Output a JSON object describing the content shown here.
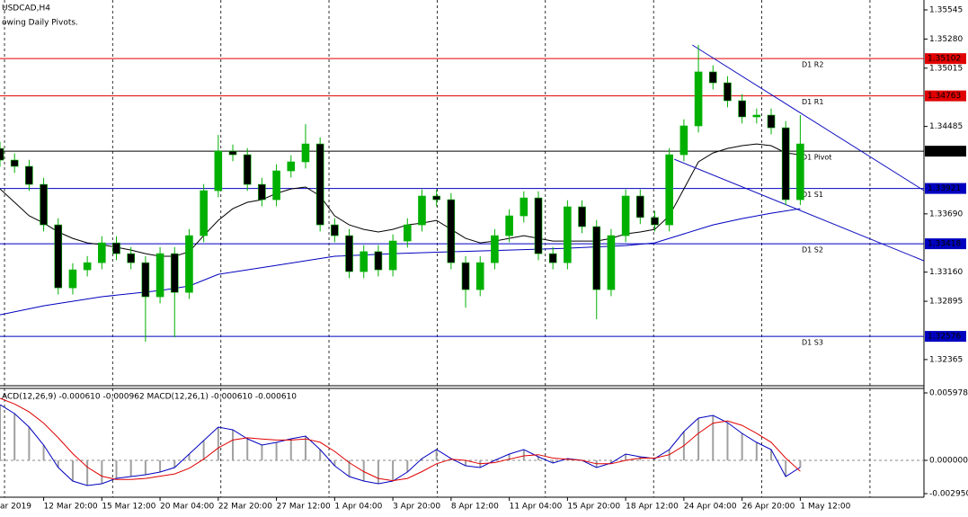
{
  "chart_data": [
    {
      "type": "candlestick",
      "title": "USDCAD,H4",
      "subtitle": "owing Daily Pivots.",
      "xlim": [
        1,
        64.5
      ],
      "ylim": [
        1.32135,
        1.35635
      ],
      "grid_x": [
        1.31,
        8.74,
        16.18,
        23.61,
        31.05,
        38.48,
        45.92,
        53.35,
        60.79
      ],
      "yticks": [
        1.35545,
        {
          "value": 1.3528,
          "label": "1.35280"
        },
        1.35015,
        1.34485,
        {
          "value": 1.3369,
          "label": "1.33690"
        },
        {
          "value": 1.3316,
          "label": "1.33160"
        },
        1.32895,
        1.32365
      ],
      "up_color": "#00b000",
      "down_color": "#000000",
      "wick_color": "#00b000",
      "x": [
        1,
        2,
        3,
        4,
        5,
        6,
        7,
        8,
        9,
        10,
        11,
        12,
        13,
        14,
        15,
        16,
        17,
        18,
        19,
        20,
        21,
        22,
        23,
        24,
        25,
        26,
        27,
        28,
        29,
        30,
        31,
        32,
        33,
        34,
        35,
        36,
        37,
        38,
        39,
        40,
        41,
        42,
        43,
        44,
        45,
        46,
        47,
        48,
        49,
        50,
        51,
        52,
        53,
        54,
        55,
        56
      ],
      "candles": [
        [
          1.34285,
          1.34345,
          1.34119,
          1.34179
        ],
        [
          1.34179,
          1.34239,
          1.34062,
          1.34122
        ],
        [
          1.34122,
          1.34182,
          1.33898,
          1.33958
        ],
        [
          1.33958,
          1.34018,
          1.3353,
          1.3359
        ],
        [
          1.3359,
          1.3365,
          1.32957,
          1.33017
        ],
        [
          1.33017,
          1.33241,
          1.32957,
          1.33181
        ],
        [
          1.33181,
          1.33306,
          1.33121,
          1.33246
        ],
        [
          1.33246,
          1.33486,
          1.33186,
          1.33426
        ],
        [
          1.33426,
          1.33486,
          1.33268,
          1.33328
        ],
        [
          1.33328,
          1.33388,
          1.33186,
          1.33246
        ],
        [
          1.33246,
          1.33306,
          1.32527,
          1.32936
        ],
        [
          1.32936,
          1.33388,
          1.32876,
          1.33328
        ],
        [
          1.33328,
          1.33388,
          1.32567,
          1.32976
        ],
        [
          1.32976,
          1.33552,
          1.32916,
          1.33492
        ],
        [
          1.33492,
          1.33961,
          1.33432,
          1.33901
        ],
        [
          1.33901,
          1.34408,
          1.33841,
          1.34261
        ],
        [
          1.34261,
          1.34321,
          1.34168,
          1.34228
        ],
        [
          1.34228,
          1.34288,
          1.33898,
          1.33958
        ],
        [
          1.33958,
          1.34018,
          1.33759,
          1.33819
        ],
        [
          1.33819,
          1.34141,
          1.33759,
          1.34081
        ],
        [
          1.34081,
          1.34223,
          1.34021,
          1.34163
        ],
        [
          1.34163,
          1.34506,
          1.34103,
          1.34326
        ],
        [
          1.34326,
          1.34386,
          1.3353,
          1.3359
        ],
        [
          1.3359,
          1.3365,
          1.33432,
          1.33492
        ],
        [
          1.33492,
          1.33552,
          1.33105,
          1.33165
        ],
        [
          1.33165,
          1.33406,
          1.33105,
          1.33346
        ],
        [
          1.33346,
          1.33406,
          1.33121,
          1.33181
        ],
        [
          1.33181,
          1.33503,
          1.33121,
          1.33443
        ],
        [
          1.33443,
          1.3365,
          1.33383,
          1.3359
        ],
        [
          1.3359,
          1.33912,
          1.3353,
          1.33852
        ],
        [
          1.33852,
          1.33912,
          1.33759,
          1.33819
        ],
        [
          1.33819,
          1.33879,
          1.33186,
          1.33246
        ],
        [
          1.33246,
          1.33306,
          1.32837,
          1.33001
        ],
        [
          1.33001,
          1.33306,
          1.32941,
          1.33246
        ],
        [
          1.33246,
          1.33552,
          1.33186,
          1.33492
        ],
        [
          1.33492,
          1.33732,
          1.33432,
          1.33672
        ],
        [
          1.33672,
          1.33895,
          1.33612,
          1.33835
        ],
        [
          1.33835,
          1.33895,
          1.33268,
          1.33328
        ],
        [
          1.33328,
          1.33388,
          1.33186,
          1.33246
        ],
        [
          1.33246,
          1.33814,
          1.33186,
          1.33754
        ],
        [
          1.33754,
          1.33814,
          1.33514,
          1.33574
        ],
        [
          1.33574,
          1.33634,
          1.32731,
          1.33001
        ],
        [
          1.33001,
          1.33552,
          1.32941,
          1.33492
        ],
        [
          1.33492,
          1.33912,
          1.33432,
          1.33852
        ],
        [
          1.33852,
          1.33912,
          1.33597,
          1.33657
        ],
        [
          1.33657,
          1.33717,
          1.3353,
          1.3359
        ],
        [
          1.3359,
          1.34288,
          1.3353,
          1.34228
        ],
        [
          1.34228,
          1.3455,
          1.34168,
          1.3449
        ],
        [
          1.3449,
          1.35226,
          1.3443,
          1.34981
        ],
        [
          1.34981,
          1.35041,
          1.34822,
          1.34882
        ],
        [
          1.34882,
          1.34942,
          1.34659,
          1.34719
        ],
        [
          1.34719,
          1.34779,
          1.34512,
          1.34572
        ],
        [
          1.34572,
          1.34648,
          1.34512,
          1.34588
        ],
        [
          1.34588,
          1.34648,
          1.34413,
          1.34473
        ],
        [
          1.34473,
          1.34533,
          1.3377,
          1.33819
        ],
        [
          1.33819,
          1.34588,
          1.3377,
          1.34326
        ]
      ],
      "lines": [
        {
          "color": "#000000",
          "x": [
            1,
            2,
            3,
            4,
            5,
            6,
            7,
            8,
            9,
            10,
            11,
            12,
            13,
            14,
            15,
            16,
            17,
            18,
            19,
            20,
            21,
            22,
            23,
            24,
            25,
            26,
            27,
            28,
            29,
            30,
            31,
            32,
            33,
            34,
            35,
            36,
            37,
            38,
            39,
            40,
            41,
            42,
            43,
            44,
            45,
            46,
            47,
            48,
            49,
            50,
            51,
            52,
            53,
            54,
            55,
            56
          ],
          "values": [
            1.33917,
            1.33795,
            1.33672,
            1.33606,
            1.33525,
            1.33467,
            1.33426,
            1.3341,
            1.33386,
            1.33361,
            1.33328,
            1.33304,
            1.33304,
            1.33345,
            1.33492,
            1.33631,
            1.33737,
            1.33795,
            1.33819,
            1.33876,
            1.33917,
            1.33934,
            1.33852,
            1.33672,
            1.3359,
            1.33549,
            1.33525,
            1.33549,
            1.3359,
            1.33606,
            1.33631,
            1.33549,
            1.33467,
            1.33426,
            1.33443,
            1.33467,
            1.33492,
            1.33467,
            1.33443,
            1.33443,
            1.33443,
            1.33443,
            1.33467,
            1.33508,
            1.33525,
            1.33549,
            1.33672,
            1.33917,
            1.34163,
            1.34244,
            1.34285,
            1.3431,
            1.34326,
            1.3431,
            1.34244,
            1.34228
          ]
        },
        {
          "color": "#0000c0",
          "x": [
            1,
            4,
            8,
            12,
            14,
            16,
            20,
            24,
            28,
            32,
            36,
            40,
            44,
            46,
            48,
            50,
            52,
            54,
            56
          ],
          "values": [
            1.32772,
            1.32854,
            1.32936,
            1.32993,
            1.33034,
            1.3314,
            1.33222,
            1.33304,
            1.33328,
            1.33345,
            1.33361,
            1.33377,
            1.33402,
            1.33426,
            1.33508,
            1.3359,
            1.33647,
            1.33696,
            1.33737
          ]
        },
        {
          "color": "#1010c0",
          "x": [
            48.58,
            64.5
          ],
          "values": [
            1.35226,
            1.33901
          ]
        },
        {
          "color": "#1010c0",
          "x": [
            47.34,
            64.5
          ],
          "values": [
            1.34187,
            1.33263
          ]
        }
      ],
      "levels": [
        {
          "name": "D1 R2",
          "value": 1.35102,
          "color": "#e00000"
        },
        {
          "name": "D1 R1",
          "value": 1.34763,
          "color": "#e00000"
        },
        {
          "name": "D1 Pivot",
          "value": 1.3426,
          "value_label": "1.34260",
          "color": "#000000"
        },
        {
          "name": "D1 S1",
          "value": 1.33921,
          "color": "#0000c0"
        },
        {
          "name": "D1 S2",
          "value": 1.33418,
          "color": "#0000c0"
        },
        {
          "name": "D1 S3",
          "value": 1.32576,
          "color": "#0000c0"
        }
      ]
    },
    {
      "type": "macd",
      "title": "ACD(12,26,9) -0.000610 -0.000962 MACD(12,26,1) -0.000610 -0.000610",
      "xlim": [
        1,
        64.5
      ],
      "ylim": [
        -0.003268,
        0.006377
      ],
      "yticks": [
        0.005978,
        {
          "value": 0,
          "label": "0.000000"
        },
        {
          "value": -0.00295,
          "label": "-0.002950"
        }
      ],
      "xticks": [
        {
          "value": 0,
          "label": "ar 2019"
        },
        {
          "value": 4,
          "label": "12 Mar 20:00"
        },
        {
          "value": 8,
          "label": "15 Mar 12:00"
        },
        {
          "value": 12,
          "label": "20 Mar 04:00"
        },
        {
          "value": 16,
          "label": "22 Mar 20:00"
        },
        {
          "value": 20,
          "label": "27 Mar 12:00"
        },
        {
          "value": 24,
          "label": "1 Apr 04:00"
        },
        {
          "value": 28,
          "label": "3 Apr 20:00"
        },
        {
          "value": 32,
          "label": "8 Apr 12:00"
        },
        {
          "value": 36,
          "label": "11 Apr 04:00"
        },
        {
          "value": 40,
          "label": "15 Apr 20:00"
        },
        {
          "value": 44,
          "label": "18 Apr 12:00"
        },
        {
          "value": 48,
          "label": "24 Apr 04:00"
        },
        {
          "value": 52,
          "label": "26 Apr 20:00"
        },
        {
          "value": 56,
          "label": "1 May 12:00"
        }
      ],
      "x": [
        1,
        2,
        3,
        4,
        5,
        6,
        7,
        8,
        9,
        10,
        11,
        12,
        13,
        14,
        15,
        16,
        17,
        18,
        19,
        20,
        21,
        22,
        23,
        24,
        25,
        26,
        27,
        28,
        29,
        30,
        31,
        32,
        33,
        34,
        35,
        36,
        37,
        38,
        39,
        40,
        41,
        42,
        43,
        44,
        45,
        46,
        47,
        48,
        49,
        50,
        51,
        52,
        53,
        54,
        55,
        56
      ],
      "series": [
        {
          "color": "#a0a0a0",
          "line_color": "#0000c0",
          "values": [
            0.004941,
            0.004144,
            0.002949,
            0.001355,
            -0.000638,
            -0.001833,
            -0.002232,
            -0.002072,
            -0.001594,
            -0.001435,
            -0.001275,
            -0.001036,
            -0.000638,
            0.000558,
            0.001753,
            0.002949,
            0.00271,
            0.001913,
            0.001355,
            0.001594,
            0.001913,
            0.002152,
            0.000956,
            -0.000478,
            -0.001435,
            -0.001833,
            -0.002072,
            -0.001833,
            -0.001036,
            0.000159,
            0.000956,
            0.000159,
            -0.000478,
            -0.000638,
            0,
            0.000558,
            0.000956,
            0.000319,
            -0.000239,
            0.000159,
            0,
            -0.000638,
            -0.000239,
            0.000558,
            0.000319,
            0.000159,
            0.000956,
            0.00255,
            0.003746,
            0.003985,
            0.003347,
            0.002391,
            0.001594,
            0.000956,
            -0.001435,
            -0.00061
          ]
        },
        {
          "color": "#e00000",
          "values": [
            0.0055,
            0.005,
            0.0043,
            0.0033,
            0.002,
            0.0006,
            -0.0006,
            -0.0014,
            -0.0017,
            -0.0017,
            -0.0016,
            -0.0014,
            -0.0012,
            -0.0007,
            0.0001,
            0.0011,
            0.0018,
            0.002,
            0.0019,
            0.0018,
            0.0018,
            0.0019,
            0.0016,
            0.0008,
            -0.0002,
            -0.001,
            -0.0016,
            -0.0018,
            -0.0016,
            -0.001,
            -0.0003,
            0.0001,
            0,
            -0.0003,
            -0.0002,
            0.0001,
            0.0004,
            0.0005,
            0.0002,
            0.0001,
            0,
            -0.0003,
            -0.0003,
            0,
            0.0002,
            0.0002,
            0.0005,
            0.0013,
            0.0024,
            0.0033,
            0.0035,
            0.0031,
            0.0024,
            0.0016,
            0.0002,
            -0.000962
          ]
        }
      ]
    }
  ]
}
